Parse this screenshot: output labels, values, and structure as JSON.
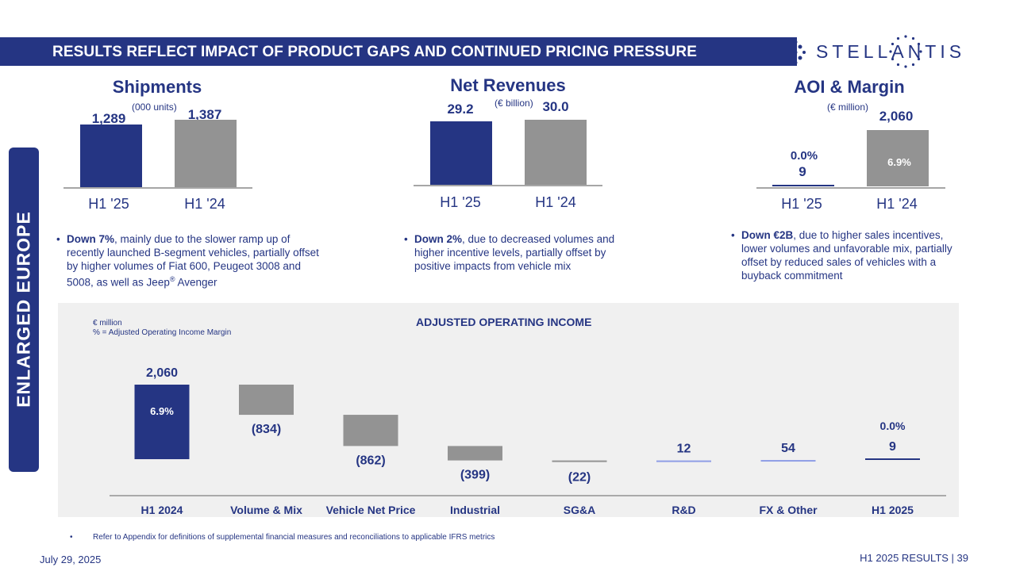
{
  "header": {
    "title": "RESULTS REFLECT IMPACT OF PRODUCT GAPS AND CONTINUED PRICING PRESSURE"
  },
  "logo": {
    "text": "STELLANTIS"
  },
  "section_label": "ENLARGED EUROPE",
  "colors": {
    "navy": "#253583",
    "grey": "#939393",
    "light_blue": "#8f9ee6",
    "panel": "#f0f0f0"
  },
  "kpis": {
    "shipments": {
      "title": "Shipments",
      "unit": "(000 units)",
      "categories": [
        "H1 '25",
        "H1 '24"
      ],
      "values": [
        1289,
        1387
      ],
      "labels": [
        "1,289",
        "1,387"
      ],
      "bullet_bold": "Down 7%",
      "bullet_text": ", mainly due to the slower ramp up of recently launched B-segment vehicles, partially offset by higher volumes of Fiat 600, Peugeot 3008 and 5008, as well as Jeep",
      "bullet_sup": "®",
      "bullet_tail": " Avenger"
    },
    "revenues": {
      "title": "Net Revenues",
      "unit": "(€ billion)",
      "categories": [
        "H1 '25",
        "H1 '24"
      ],
      "values": [
        29.2,
        30.0
      ],
      "labels": [
        "29.2",
        "30.0"
      ],
      "bullet_bold": "Down 2%",
      "bullet_text": ", due to decreased volumes and higher incentive levels, partially offset by positive impacts from vehicle mix"
    },
    "aoi": {
      "title": "AOI & Margin",
      "unit": "(€ million)",
      "categories": [
        "H1 '25",
        "H1 '24"
      ],
      "values": [
        9,
        2060
      ],
      "labels": [
        "9",
        "2,060"
      ],
      "margins": [
        "0.0%",
        "6.9%"
      ],
      "bullet_bold": "Down €2B",
      "bullet_text": ", due to higher sales incentives, lower volumes and unfavorable mix, partially offset by reduced sales of vehicles with a buyback commitment"
    }
  },
  "chart_data": {
    "type": "bar",
    "subtype": "waterfall",
    "title": "ADJUSTED OPERATING INCOME",
    "notes": [
      "€ million",
      "% = Adjusted Operating Income Margin"
    ],
    "categories": [
      "H1 2024",
      "Volume & Mix",
      "Vehicle Net Price",
      "Industrial",
      "SG&A",
      "R&D",
      "FX & Other",
      "H1 2025"
    ],
    "values": [
      2060,
      -834,
      -862,
      -399,
      -22,
      12,
      54,
      9
    ],
    "labels": [
      "2,060",
      "(834)",
      "(862)",
      "(399)",
      "(22)",
      "12",
      "54",
      "9"
    ],
    "kinds": [
      "total",
      "delta",
      "delta",
      "delta",
      "delta",
      "delta",
      "delta",
      "total"
    ],
    "margins": {
      "H1 2024": "6.9%",
      "H1 2025": "0.0%"
    },
    "unit": "€ million"
  },
  "footer": {
    "bullet": "•",
    "note": "Refer to Appendix for definitions of supplemental financial measures and reconciliations to applicable IFRS metrics",
    "date": "July 29, 2025",
    "page": "H1 2025 RESULTS  | 39"
  }
}
